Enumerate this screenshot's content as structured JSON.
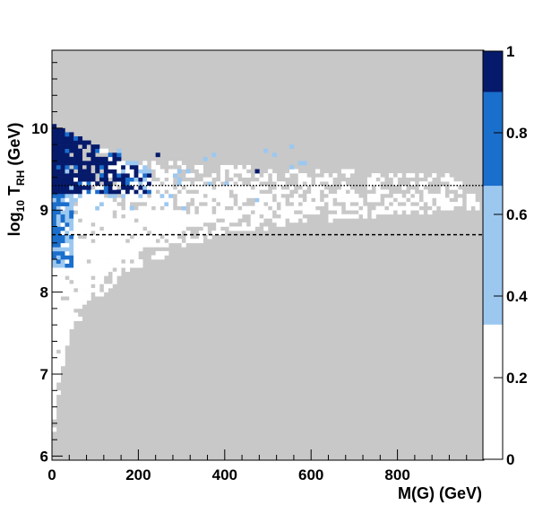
{
  "chart_data": {
    "type": "heatmap",
    "title": "",
    "xlabel": "M(G) (GeV)",
    "ylabel": "log₁₀ Tₑₕ (GeV)",
    "ylabel_parts": {
      "main": "log",
      "sub1": "10",
      "mid": " T",
      "sub2": "RH",
      "unit": " (GeV)"
    },
    "xlim": [
      0,
      1000
    ],
    "ylim": [
      5.95,
      10.95
    ],
    "x_ticks": [
      0,
      200,
      400,
      600,
      800
    ],
    "x_tick_labels": [
      "0",
      "200",
      "400",
      "600",
      "800"
    ],
    "y_ticks": [
      6,
      7,
      8,
      9,
      10
    ],
    "y_tick_labels": [
      "6",
      "7",
      "8",
      "9",
      "10"
    ],
    "colorbar": {
      "range": [
        0,
        1
      ],
      "ticks": [
        0,
        0.2,
        0.4,
        0.6,
        0.8,
        1
      ],
      "tick_labels": [
        "0",
        "0.2",
        "0.4",
        "0.6",
        "0.8",
        "1"
      ],
      "bands": [
        {
          "from": 0.0,
          "to": 0.33,
          "color": "#ffffff"
        },
        {
          "from": 0.33,
          "to": 0.67,
          "color": "#9cc8f0"
        },
        {
          "from": 0.67,
          "to": 0.9,
          "color": "#1a6ecc"
        },
        {
          "from": 0.9,
          "to": 1.0,
          "color": "#061a6b"
        }
      ]
    },
    "colors": {
      "background": "#c8c8c8",
      "white": "#ffffff",
      "light_blue": "#9cc8f0",
      "mid_blue": "#1a6ecc",
      "dark_blue": "#061a6b"
    },
    "reference_lines": [
      {
        "y": 9.3,
        "style": "dotted"
      },
      {
        "y": 8.7,
        "style": "dashed"
      }
    ],
    "bin_width_x": 10,
    "bin_width_y": 0.05,
    "regions": {
      "white_lower_boundary": [
        [
          0,
          6.0
        ],
        [
          20,
          7.0
        ],
        [
          40,
          7.3
        ],
        [
          60,
          7.6
        ],
        [
          80,
          7.8
        ],
        [
          100,
          7.9
        ],
        [
          150,
          8.1
        ],
        [
          200,
          8.3
        ],
        [
          250,
          8.4
        ],
        [
          300,
          8.55
        ],
        [
          400,
          8.7
        ],
        [
          600,
          8.85
        ],
        [
          800,
          8.95
        ],
        [
          1000,
          9.0
        ]
      ],
      "white_upper_boundary": [
        [
          0,
          9.4
        ],
        [
          200,
          9.35
        ],
        [
          400,
          9.3
        ],
        [
          600,
          9.25
        ],
        [
          800,
          9.2
        ],
        [
          1000,
          9.2
        ]
      ],
      "dark_region": {
        "x_max": 230,
        "y_min": 9.2,
        "y_max": 10.05
      },
      "mid_region": {
        "x_max": 50,
        "y_min": 8.3,
        "y_max": 9.5
      }
    }
  }
}
